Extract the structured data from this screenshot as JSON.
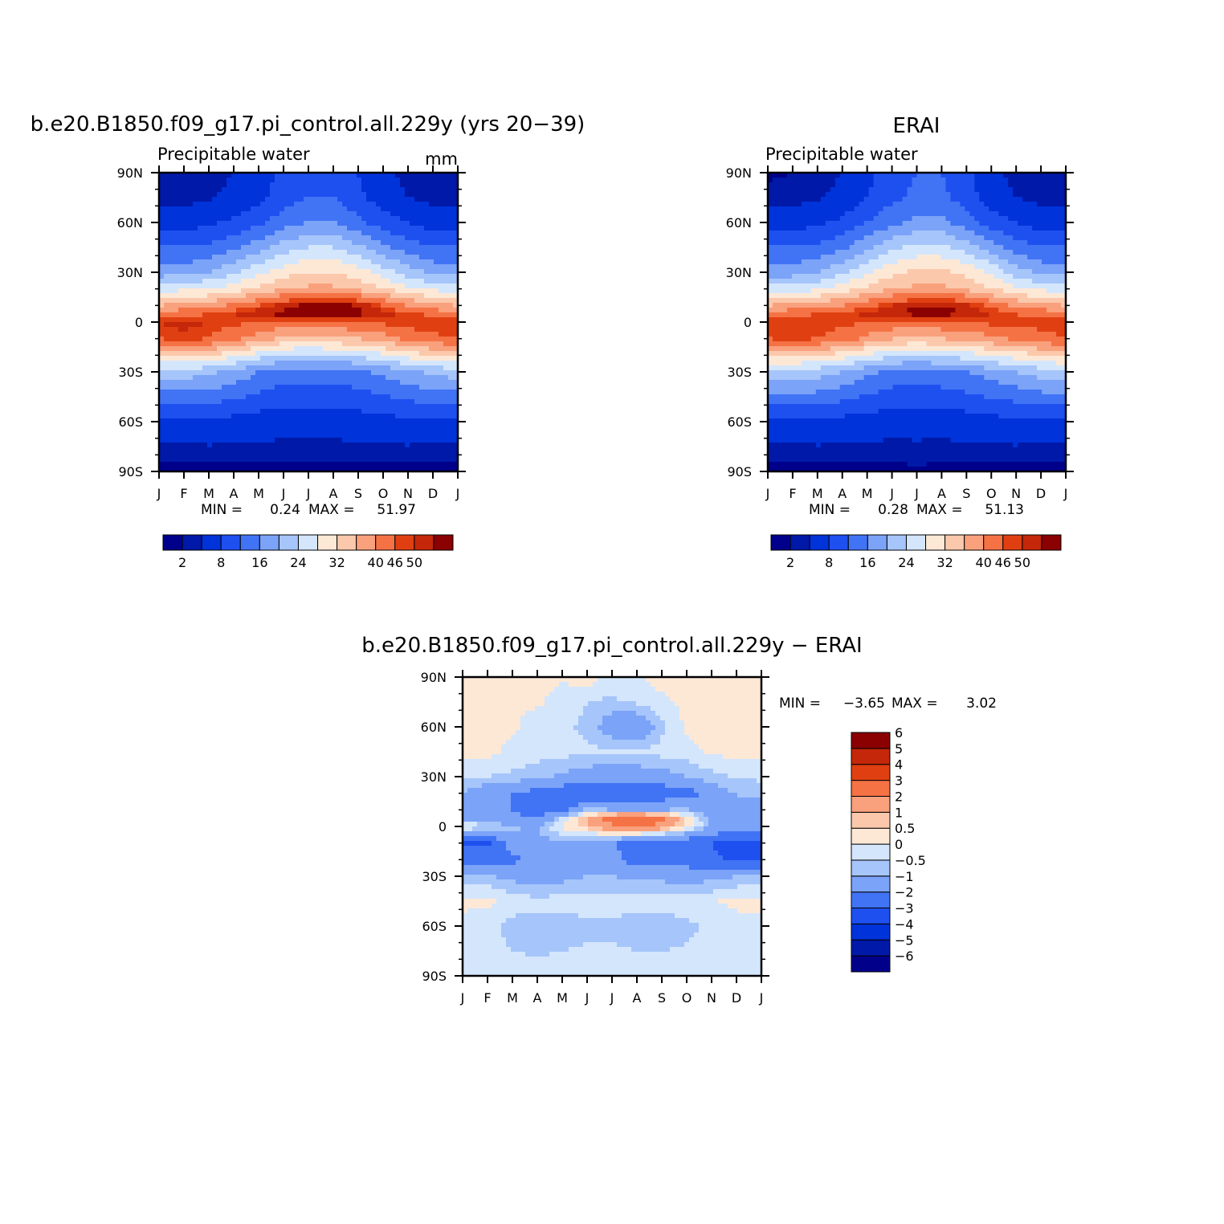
{
  "chart_data": [
    {
      "type": "heatmap",
      "title": "b.e20.B1850.f09_g17.pi_control.all.229y (yrs 20−39)",
      "subtitle": "Precipitable water",
      "units": "mm",
      "x_tick_labels": [
        "J",
        "F",
        "M",
        "A",
        "M",
        "J",
        "J",
        "A",
        "S",
        "O",
        "N",
        "D",
        "J"
      ],
      "y_tick_labels": [
        "90N",
        "60N",
        "30N",
        "0",
        "30S",
        "60S",
        "90S"
      ],
      "ylim": [
        -90,
        90
      ],
      "stats_text": {
        "min_label": "MIN =",
        "min": "0.24",
        "max_label": "MAX =",
        "max": "51.97"
      },
      "colorbar": {
        "colors": [
          "#00008b",
          "#0019a8",
          "#0033d9",
          "#1e50f0",
          "#4173f5",
          "#7ba3f8",
          "#a6c5fa",
          "#d4e6fc",
          "#fde8d6",
          "#fcc8ac",
          "#f9a07c",
          "#f57245",
          "#e04011",
          "#c42709",
          "#8b0000"
        ],
        "labels": [
          "2",
          "8",
          "16",
          "24",
          "32",
          "40",
          "46",
          "50"
        ]
      },
      "field": {
        "lat": [
          -90,
          -60,
          -30,
          -20,
          -10,
          0,
          5,
          10,
          20,
          30,
          45,
          60,
          75,
          90
        ],
        "values": [
          [
            0.5,
            0.5,
            0.6,
            0.8,
            1.0,
            1.2,
            1.4,
            1.2,
            1.0,
            0.8,
            0.6,
            0.5,
            0.5
          ],
          [
            7,
            7,
            7,
            6.5,
            6,
            5.5,
            5.5,
            5.5,
            6,
            6.5,
            7,
            7,
            7
          ],
          [
            22,
            22,
            21,
            19,
            16,
            14,
            14,
            14,
            15,
            17,
            19,
            21,
            22
          ],
          [
            33,
            33,
            32,
            29,
            26,
            24,
            23,
            24,
            25,
            27,
            30,
            32,
            33
          ],
          [
            44,
            45,
            44,
            41,
            38,
            35,
            34,
            35,
            36,
            38,
            41,
            43,
            44
          ],
          [
            46,
            47,
            46,
            45,
            44,
            43,
            42,
            43,
            44,
            45,
            46,
            46,
            46
          ],
          [
            42,
            43,
            44,
            46,
            48,
            49,
            50,
            50,
            49,
            47,
            45,
            43,
            42
          ],
          [
            36,
            37,
            38,
            41,
            44,
            47,
            49,
            49,
            48,
            44,
            40,
            37,
            36
          ],
          [
            26,
            27,
            28,
            30,
            33,
            36,
            37,
            37,
            35,
            32,
            29,
            27,
            26
          ],
          [
            18,
            18,
            20,
            23,
            27,
            30,
            32,
            32,
            30,
            26,
            22,
            19,
            18
          ],
          [
            12,
            12,
            13,
            15,
            18,
            22,
            24,
            24,
            21,
            17,
            14,
            12,
            12
          ],
          [
            6,
            6,
            7,
            9,
            11,
            14,
            16,
            16,
            13,
            10,
            8,
            6,
            6
          ],
          [
            3,
            3,
            3.5,
            5,
            7,
            10,
            12,
            12,
            9,
            6,
            4,
            3,
            3
          ],
          [
            2,
            2,
            2.5,
            4,
            6,
            9,
            11,
            11,
            8,
            5,
            3,
            2,
            2
          ]
        ]
      }
    },
    {
      "type": "heatmap",
      "title": "ERAI",
      "subtitle": "Precipitable water",
      "units": "",
      "x_tick_labels": [
        "J",
        "F",
        "M",
        "A",
        "M",
        "J",
        "J",
        "A",
        "S",
        "O",
        "N",
        "D",
        "J"
      ],
      "y_tick_labels": [
        "90N",
        "60N",
        "30N",
        "0",
        "30S",
        "60S",
        "90S"
      ],
      "ylim": [
        -90,
        90
      ],
      "stats_text": {
        "min_label": "MIN =",
        "min": "0.28",
        "max_label": "MAX =",
        "max": "51.13"
      },
      "colorbar": {
        "colors": [
          "#00008b",
          "#0019a8",
          "#0033d9",
          "#1e50f0",
          "#4173f5",
          "#7ba3f8",
          "#a6c5fa",
          "#d4e6fc",
          "#fde8d6",
          "#fcc8ac",
          "#f9a07c",
          "#f57245",
          "#e04011",
          "#c42709",
          "#8b0000"
        ],
        "labels": [
          "2",
          "8",
          "16",
          "24",
          "32",
          "40",
          "46",
          "50"
        ]
      },
      "field": {
        "lat": [
          -90,
          -60,
          -30,
          -20,
          -10,
          0,
          5,
          10,
          20,
          30,
          45,
          60,
          75,
          90
        ],
        "values": [
          [
            0.5,
            0.5,
            0.6,
            0.8,
            1.0,
            1.3,
            1.5,
            1.3,
            1.0,
            0.8,
            0.6,
            0.5,
            0.5
          ],
          [
            7,
            7,
            7,
            6.5,
            6,
            5.5,
            5.5,
            5.5,
            6,
            6.5,
            7,
            7,
            7
          ],
          [
            23,
            23,
            22,
            20,
            17,
            15,
            14,
            15,
            16,
            18,
            20,
            22,
            23
          ],
          [
            33,
            33,
            32,
            30,
            27,
            25,
            24,
            25,
            26,
            28,
            30,
            32,
            33
          ],
          [
            44,
            45,
            44,
            42,
            39,
            36,
            35,
            36,
            37,
            39,
            41,
            43,
            44
          ],
          [
            45,
            46,
            46,
            45,
            44,
            43,
            43,
            43,
            44,
            45,
            45,
            45,
            45
          ],
          [
            42,
            43,
            44,
            45,
            47,
            48,
            49,
            49,
            48,
            46,
            44,
            43,
            42
          ],
          [
            36,
            37,
            38,
            40,
            43,
            46,
            48,
            48,
            47,
            43,
            39,
            37,
            36
          ],
          [
            26,
            26,
            27,
            30,
            33,
            36,
            37,
            37,
            35,
            32,
            29,
            27,
            26
          ],
          [
            18,
            18,
            20,
            23,
            27,
            31,
            33,
            33,
            31,
            27,
            22,
            19,
            18
          ],
          [
            12,
            12,
            13,
            15,
            19,
            23,
            25,
            25,
            22,
            18,
            14,
            12,
            12
          ],
          [
            6,
            6,
            7,
            9,
            12,
            15,
            17,
            17,
            14,
            10,
            8,
            6,
            6
          ],
          [
            3,
            3,
            3.5,
            5,
            8,
            11,
            13,
            13,
            10,
            6,
            4,
            3,
            3
          ],
          [
            1.5,
            2,
            2.5,
            4,
            7,
            10,
            12,
            12,
            9,
            5,
            3,
            2,
            2
          ]
        ]
      }
    },
    {
      "type": "heatmap",
      "title": "b.e20.B1850.f09_g17.pi_control.all.229y − ERAI",
      "subtitle": "",
      "units": "",
      "x_tick_labels": [
        "J",
        "F",
        "M",
        "A",
        "M",
        "J",
        "J",
        "A",
        "S",
        "O",
        "N",
        "D",
        "J"
      ],
      "y_tick_labels": [
        "90N",
        "60N",
        "30N",
        "0",
        "30S",
        "60S",
        "90S"
      ],
      "ylim": [
        -90,
        90
      ],
      "stats_text": {
        "min_label": "MIN =",
        "min": "−3.65",
        "max_label": "MAX =",
        "max": "3.02"
      },
      "colorbar": {
        "colors": [
          "#00008b",
          "#0019a8",
          "#0033d9",
          "#1e50f0",
          "#4173f5",
          "#7ba3f8",
          "#a6c5fa",
          "#d4e6fc",
          "#fde8d6",
          "#fcc8ac",
          "#f9a07c",
          "#f57245",
          "#e04011",
          "#c42709",
          "#8b0000"
        ],
        "labels": [
          "−6",
          "−5",
          "−4",
          "−3",
          "−2",
          "−1",
          "−0.5",
          "0",
          "0.5",
          "1",
          "2",
          "3",
          "4",
          "5",
          "6"
        ]
      },
      "field": {
        "lat": [
          -90,
          -60,
          -45,
          -30,
          -20,
          -10,
          0,
          5,
          10,
          20,
          30,
          45,
          60,
          75,
          90
        ],
        "values": [
          [
            -0.3,
            -0.3,
            -0.3,
            -0.3,
            -0.3,
            -0.3,
            -0.3,
            -0.3,
            -0.3,
            -0.3,
            -0.3,
            -0.3,
            -0.3
          ],
          [
            -0.3,
            -0.3,
            -0.7,
            -0.8,
            -0.7,
            -0.6,
            -0.6,
            -0.7,
            -0.7,
            -0.6,
            -0.4,
            -0.3,
            -0.3
          ],
          [
            0.2,
            0.1,
            -0.2,
            -0.3,
            -0.3,
            -0.3,
            -0.3,
            -0.3,
            -0.3,
            -0.3,
            -0.1,
            0.2,
            0.2
          ],
          [
            -0.8,
            -0.9,
            -1.2,
            -1.5,
            -1.2,
            -1.0,
            -1.0,
            -1.1,
            -1.2,
            -1.3,
            -1.2,
            -1.0,
            -0.9
          ],
          [
            -2.5,
            -2.6,
            -2.2,
            -1.8,
            -1.6,
            -1.4,
            -1.8,
            -2.4,
            -2.6,
            -2.6,
            -2.8,
            -3.2,
            -3.2
          ],
          [
            -3.0,
            -3.2,
            -1.5,
            -1.3,
            -1.2,
            -1.5,
            -1.8,
            -2.6,
            -2.9,
            -2.8,
            -3.0,
            -3.4,
            -3.4
          ],
          [
            0.3,
            -0.6,
            -0.9,
            -1.0,
            0.2,
            0.8,
            1.8,
            2.2,
            1.6,
            0.3,
            -1.0,
            -1.4,
            -1.2
          ],
          [
            -1.2,
            -1.5,
            -1.8,
            -2.0,
            -0.5,
            1.0,
            2.6,
            3.0,
            2.2,
            0.4,
            -1.3,
            -1.5,
            -1.4
          ],
          [
            -1.4,
            -1.8,
            -2.0,
            -2.4,
            -2.6,
            -0.8,
            -1.0,
            -1.2,
            -1.0,
            -0.9,
            -1.6,
            -1.8,
            -1.5
          ],
          [
            -1.0,
            -1.6,
            -2.0,
            -2.4,
            -2.8,
            -3.0,
            -3.2,
            -3.0,
            -2.7,
            -2.5,
            -1.5,
            -0.9,
            -0.8
          ],
          [
            -0.4,
            -0.5,
            -0.6,
            -0.8,
            -1.1,
            -1.4,
            -1.6,
            -1.5,
            -1.3,
            -1.0,
            -0.7,
            -0.4,
            -0.4
          ],
          [
            0.2,
            0.2,
            -0.2,
            -0.3,
            -0.3,
            -0.4,
            -0.4,
            -0.4,
            -0.3,
            -0.2,
            0.1,
            0.2,
            0.2
          ],
          [
            0.2,
            0.2,
            0.1,
            -0.3,
            -0.4,
            -0.6,
            -1.5,
            -1.8,
            -0.6,
            0.1,
            0.2,
            0.2,
            0.2
          ],
          [
            0.2,
            0.2,
            0.1,
            0.1,
            -0.3,
            -0.5,
            -0.6,
            -0.4,
            -0.2,
            0.2,
            0.2,
            0.2,
            0.2
          ],
          [
            0.2,
            0.2,
            0.2,
            0.2,
            0.1,
            0.3,
            -0.2,
            -0.1,
            0.3,
            0.4,
            0.2,
            0.2,
            0.2
          ]
        ]
      }
    }
  ]
}
